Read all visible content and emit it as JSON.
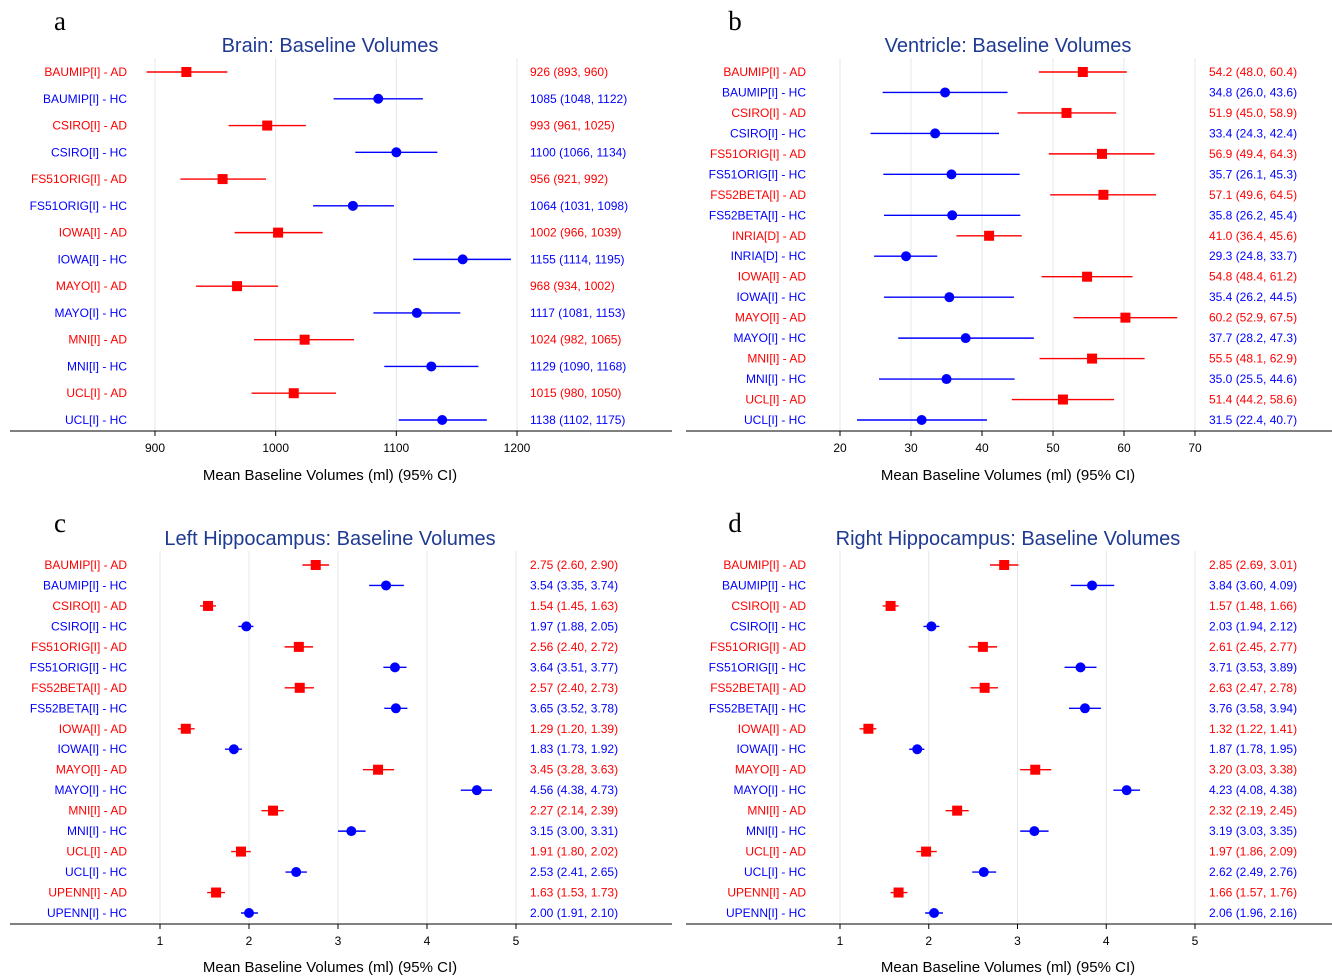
{
  "colors": {
    "AD": "#ff0000",
    "HC": "#0000ff",
    "grid": "#dfe8ec",
    "axis": "#000000",
    "title": "#1f3a93"
  },
  "chart_data": [
    {
      "panel": "a",
      "type": "forest",
      "title": "Brain: Baseline Volumes",
      "xlabel": "Mean Baseline Volumes (ml) (95% CI)",
      "xlim": [
        880,
        1225
      ],
      "xticks": [
        900,
        1000,
        1100,
        1200
      ],
      "grid": true,
      "rows": [
        {
          "label": "BAUMIP[I] - AD",
          "group": "AD",
          "mean": 926,
          "lo": 893,
          "hi": 960,
          "ci_text": "926 (893, 960)"
        },
        {
          "label": "BAUMIP[I] - HC",
          "group": "HC",
          "mean": 1085,
          "lo": 1048,
          "hi": 1122,
          "ci_text": "1085 (1048, 1122)"
        },
        {
          "label": "CSIRO[I] - AD",
          "group": "AD",
          "mean": 993,
          "lo": 961,
          "hi": 1025,
          "ci_text": "993 (961, 1025)"
        },
        {
          "label": "CSIRO[I] - HC",
          "group": "HC",
          "mean": 1100,
          "lo": 1066,
          "hi": 1134,
          "ci_text": "1100 (1066, 1134)"
        },
        {
          "label": "FS51ORIG[I] - AD",
          "group": "AD",
          "mean": 956,
          "lo": 921,
          "hi": 992,
          "ci_text": "956 (921, 992)"
        },
        {
          "label": "FS51ORIG[I] - HC",
          "group": "HC",
          "mean": 1064,
          "lo": 1031,
          "hi": 1098,
          "ci_text": "1064 (1031, 1098)"
        },
        {
          "label": "IOWA[I] - AD",
          "group": "AD",
          "mean": 1002,
          "lo": 966,
          "hi": 1039,
          "ci_text": "1002 (966, 1039)"
        },
        {
          "label": "IOWA[I] - HC",
          "group": "HC",
          "mean": 1155,
          "lo": 1114,
          "hi": 1195,
          "ci_text": "1155 (1114, 1195)"
        },
        {
          "label": "MAYO[I] - AD",
          "group": "AD",
          "mean": 968,
          "lo": 934,
          "hi": 1002,
          "ci_text": "968 (934, 1002)"
        },
        {
          "label": "MAYO[I] - HC",
          "group": "HC",
          "mean": 1117,
          "lo": 1081,
          "hi": 1153,
          "ci_text": "1117 (1081, 1153)"
        },
        {
          "label": "MNI[I] - AD",
          "group": "AD",
          "mean": 1024,
          "lo": 982,
          "hi": 1065,
          "ci_text": "1024 (982, 1065)"
        },
        {
          "label": "MNI[I] - HC",
          "group": "HC",
          "mean": 1129,
          "lo": 1090,
          "hi": 1168,
          "ci_text": "1129 (1090, 1168)"
        },
        {
          "label": "UCL[I] - AD",
          "group": "AD",
          "mean": 1015,
          "lo": 980,
          "hi": 1050,
          "ci_text": "1015 (980, 1050)"
        },
        {
          "label": "UCL[I] - HC",
          "group": "HC",
          "mean": 1138,
          "lo": 1102,
          "hi": 1175,
          "ci_text": "1138 (1102, 1175)"
        }
      ]
    },
    {
      "panel": "b",
      "type": "forest",
      "title": "Ventricle: Baseline Volumes",
      "xlabel": "Mean Baseline Volumes (ml) (95% CI)",
      "xlim": [
        15,
        75
      ],
      "xticks": [
        20,
        30,
        40,
        50,
        60,
        70
      ],
      "grid": true,
      "rows": [
        {
          "label": "BAUMIP[I] - AD",
          "group": "AD",
          "mean": 54.2,
          "lo": 48.0,
          "hi": 60.4,
          "ci_text": "54.2 (48.0, 60.4)"
        },
        {
          "label": "BAUMIP[I] - HC",
          "group": "HC",
          "mean": 34.8,
          "lo": 26.0,
          "hi": 43.6,
          "ci_text": "34.8 (26.0, 43.6)"
        },
        {
          "label": "CSIRO[I] - AD",
          "group": "AD",
          "mean": 51.9,
          "lo": 45.0,
          "hi": 58.9,
          "ci_text": "51.9 (45.0, 58.9)"
        },
        {
          "label": "CSIRO[I] - HC",
          "group": "HC",
          "mean": 33.4,
          "lo": 24.3,
          "hi": 42.4,
          "ci_text": "33.4 (24.3, 42.4)"
        },
        {
          "label": "FS51ORIG[I] - AD",
          "group": "AD",
          "mean": 56.9,
          "lo": 49.4,
          "hi": 64.3,
          "ci_text": "56.9 (49.4, 64.3)"
        },
        {
          "label": "FS51ORIG[I] - HC",
          "group": "HC",
          "mean": 35.7,
          "lo": 26.1,
          "hi": 45.3,
          "ci_text": "35.7 (26.1, 45.3)"
        },
        {
          "label": "FS52BETA[I] - AD",
          "group": "AD",
          "mean": 57.1,
          "lo": 49.6,
          "hi": 64.5,
          "ci_text": "57.1 (49.6, 64.5)"
        },
        {
          "label": "FS52BETA[I] - HC",
          "group": "HC",
          "mean": 35.8,
          "lo": 26.2,
          "hi": 45.4,
          "ci_text": "35.8 (26.2, 45.4)"
        },
        {
          "label": "INRIA[D] - AD",
          "group": "AD",
          "mean": 41.0,
          "lo": 36.4,
          "hi": 45.6,
          "ci_text": "41.0 (36.4, 45.6)"
        },
        {
          "label": "INRIA[D] - HC",
          "group": "HC",
          "mean": 29.3,
          "lo": 24.8,
          "hi": 33.7,
          "ci_text": "29.3 (24.8, 33.7)"
        },
        {
          "label": "IOWA[I] - AD",
          "group": "AD",
          "mean": 54.8,
          "lo": 48.4,
          "hi": 61.2,
          "ci_text": "54.8 (48.4, 61.2)"
        },
        {
          "label": "IOWA[I] - HC",
          "group": "HC",
          "mean": 35.4,
          "lo": 26.2,
          "hi": 44.5,
          "ci_text": "35.4 (26.2, 44.5)"
        },
        {
          "label": "MAYO[I] - AD",
          "group": "AD",
          "mean": 60.2,
          "lo": 52.9,
          "hi": 67.5,
          "ci_text": "60.2 (52.9, 67.5)"
        },
        {
          "label": "MAYO[I] - HC",
          "group": "HC",
          "mean": 37.7,
          "lo": 28.2,
          "hi": 47.3,
          "ci_text": "37.7 (28.2, 47.3)"
        },
        {
          "label": "MNI[I] - AD",
          "group": "AD",
          "mean": 55.5,
          "lo": 48.1,
          "hi": 62.9,
          "ci_text": "55.5 (48.1, 62.9)"
        },
        {
          "label": "MNI[I] - HC",
          "group": "HC",
          "mean": 35.0,
          "lo": 25.5,
          "hi": 44.6,
          "ci_text": "35.0 (25.5, 44.6)"
        },
        {
          "label": "UCL[I] - AD",
          "group": "AD",
          "mean": 51.4,
          "lo": 44.2,
          "hi": 58.6,
          "ci_text": "51.4 (44.2, 58.6)"
        },
        {
          "label": "UCL[I] - HC",
          "group": "HC",
          "mean": 31.5,
          "lo": 22.4,
          "hi": 40.7,
          "ci_text": "31.5 (22.4, 40.7)"
        }
      ]
    },
    {
      "panel": "c",
      "type": "forest",
      "title": "Left Hippocampus: Baseline Volumes",
      "xlabel": "Mean Baseline Volumes (ml) (95% CI)",
      "xlim": [
        0.5,
        5.75
      ],
      "xticks": [
        1,
        2,
        3,
        4,
        5
      ],
      "grid": true,
      "rows": [
        {
          "label": "BAUMIP[I] - AD",
          "group": "AD",
          "mean": 2.75,
          "lo": 2.6,
          "hi": 2.9,
          "ci_text": "2.75 (2.60, 2.90)"
        },
        {
          "label": "BAUMIP[I] - HC",
          "group": "HC",
          "mean": 3.54,
          "lo": 3.35,
          "hi": 3.74,
          "ci_text": "3.54 (3.35, 3.74)"
        },
        {
          "label": "CSIRO[I] - AD",
          "group": "AD",
          "mean": 1.54,
          "lo": 1.45,
          "hi": 1.63,
          "ci_text": "1.54 (1.45, 1.63)"
        },
        {
          "label": "CSIRO[I] - HC",
          "group": "HC",
          "mean": 1.97,
          "lo": 1.88,
          "hi": 2.05,
          "ci_text": "1.97 (1.88, 2.05)"
        },
        {
          "label": "FS51ORIG[I] - AD",
          "group": "AD",
          "mean": 2.56,
          "lo": 2.4,
          "hi": 2.72,
          "ci_text": "2.56 (2.40, 2.72)"
        },
        {
          "label": "FS51ORIG[I] - HC",
          "group": "HC",
          "mean": 3.64,
          "lo": 3.51,
          "hi": 3.77,
          "ci_text": "3.64 (3.51, 3.77)"
        },
        {
          "label": "FS52BETA[I] - AD",
          "group": "AD",
          "mean": 2.57,
          "lo": 2.4,
          "hi": 2.73,
          "ci_text": "2.57 (2.40, 2.73)"
        },
        {
          "label": "FS52BETA[I] - HC",
          "group": "HC",
          "mean": 3.65,
          "lo": 3.52,
          "hi": 3.78,
          "ci_text": "3.65 (3.52, 3.78)"
        },
        {
          "label": "IOWA[I] - AD",
          "group": "AD",
          "mean": 1.29,
          "lo": 1.2,
          "hi": 1.39,
          "ci_text": "1.29 (1.20, 1.39)"
        },
        {
          "label": "IOWA[I] - HC",
          "group": "HC",
          "mean": 1.83,
          "lo": 1.73,
          "hi": 1.92,
          "ci_text": "1.83 (1.73, 1.92)"
        },
        {
          "label": "MAYO[I] - AD",
          "group": "AD",
          "mean": 3.45,
          "lo": 3.28,
          "hi": 3.63,
          "ci_text": "3.45 (3.28, 3.63)"
        },
        {
          "label": "MAYO[I] - HC",
          "group": "HC",
          "mean": 4.56,
          "lo": 4.38,
          "hi": 4.73,
          "ci_text": "4.56 (4.38, 4.73)"
        },
        {
          "label": "MNI[I] - AD",
          "group": "AD",
          "mean": 2.27,
          "lo": 2.14,
          "hi": 2.39,
          "ci_text": "2.27 (2.14, 2.39)"
        },
        {
          "label": "MNI[I] - HC",
          "group": "HC",
          "mean": 3.15,
          "lo": 3.0,
          "hi": 3.31,
          "ci_text": "3.15 (3.00, 3.31)"
        },
        {
          "label": "UCL[I] - AD",
          "group": "AD",
          "mean": 1.91,
          "lo": 1.8,
          "hi": 2.02,
          "ci_text": "1.91 (1.80, 2.02)"
        },
        {
          "label": "UCL[I] - HC",
          "group": "HC",
          "mean": 2.53,
          "lo": 2.41,
          "hi": 2.65,
          "ci_text": "2.53 (2.41, 2.65)"
        },
        {
          "label": "UPENN[I] - AD",
          "group": "AD",
          "mean": 1.63,
          "lo": 1.53,
          "hi": 1.73,
          "ci_text": "1.63 (1.53, 1.73)"
        },
        {
          "label": "UPENN[I] - HC",
          "group": "HC",
          "mean": 2.0,
          "lo": 1.91,
          "hi": 2.1,
          "ci_text": "2.00 (1.91, 2.10)"
        }
      ]
    },
    {
      "panel": "d",
      "type": "forest",
      "title": "Right Hippocampus: Baseline Volumes",
      "xlabel": "Mean Baseline Volumes (ml) (95% CI)",
      "xlim": [
        0.5,
        5.75
      ],
      "xticks": [
        1,
        2,
        3,
        4,
        5
      ],
      "grid": true,
      "rows": [
        {
          "label": "BAUMIP[I] - AD",
          "group": "AD",
          "mean": 2.85,
          "lo": 2.69,
          "hi": 3.01,
          "ci_text": "2.85 (2.69, 3.01)"
        },
        {
          "label": "BAUMIP[I] - HC",
          "group": "HC",
          "mean": 3.84,
          "lo": 3.6,
          "hi": 4.09,
          "ci_text": "3.84 (3.60, 4.09)"
        },
        {
          "label": "CSIRO[I] - AD",
          "group": "AD",
          "mean": 1.57,
          "lo": 1.48,
          "hi": 1.66,
          "ci_text": "1.57 (1.48, 1.66)"
        },
        {
          "label": "CSIRO[I] - HC",
          "group": "HC",
          "mean": 2.03,
          "lo": 1.94,
          "hi": 2.12,
          "ci_text": "2.03 (1.94, 2.12)"
        },
        {
          "label": "FS51ORIG[I] - AD",
          "group": "AD",
          "mean": 2.61,
          "lo": 2.45,
          "hi": 2.77,
          "ci_text": "2.61 (2.45, 2.77)"
        },
        {
          "label": "FS51ORIG[I] - HC",
          "group": "HC",
          "mean": 3.71,
          "lo": 3.53,
          "hi": 3.89,
          "ci_text": "3.71 (3.53, 3.89)"
        },
        {
          "label": "FS52BETA[I] - AD",
          "group": "AD",
          "mean": 2.63,
          "lo": 2.47,
          "hi": 2.78,
          "ci_text": "2.63 (2.47, 2.78)"
        },
        {
          "label": "FS52BETA[I] - HC",
          "group": "HC",
          "mean": 3.76,
          "lo": 3.58,
          "hi": 3.94,
          "ci_text": "3.76 (3.58, 3.94)"
        },
        {
          "label": "IOWA[I] - AD",
          "group": "AD",
          "mean": 1.32,
          "lo": 1.22,
          "hi": 1.41,
          "ci_text": "1.32 (1.22, 1.41)"
        },
        {
          "label": "IOWA[I] - HC",
          "group": "HC",
          "mean": 1.87,
          "lo": 1.78,
          "hi": 1.95,
          "ci_text": "1.87 (1.78, 1.95)"
        },
        {
          "label": "MAYO[I] - AD",
          "group": "AD",
          "mean": 3.2,
          "lo": 3.03,
          "hi": 3.38,
          "ci_text": "3.20 (3.03, 3.38)"
        },
        {
          "label": "MAYO[I] - HC",
          "group": "HC",
          "mean": 4.23,
          "lo": 4.08,
          "hi": 4.38,
          "ci_text": "4.23 (4.08, 4.38)"
        },
        {
          "label": "MNI[I] - AD",
          "group": "AD",
          "mean": 2.32,
          "lo": 2.19,
          "hi": 2.45,
          "ci_text": "2.32 (2.19, 2.45)"
        },
        {
          "label": "MNI[I] - HC",
          "group": "HC",
          "mean": 3.19,
          "lo": 3.03,
          "hi": 3.35,
          "ci_text": "3.19 (3.03, 3.35)"
        },
        {
          "label": "UCL[I] - AD",
          "group": "AD",
          "mean": 1.97,
          "lo": 1.86,
          "hi": 2.09,
          "ci_text": "1.97 (1.86, 2.09)"
        },
        {
          "label": "UCL[I] - HC",
          "group": "HC",
          "mean": 2.62,
          "lo": 2.49,
          "hi": 2.76,
          "ci_text": "2.62 (2.49, 2.76)"
        },
        {
          "label": "UPENN[I] - AD",
          "group": "AD",
          "mean": 1.66,
          "lo": 1.57,
          "hi": 1.76,
          "ci_text": "1.66 (1.57, 1.76)"
        },
        {
          "label": "UPENN[I] - HC",
          "group": "HC",
          "mean": 2.06,
          "lo": 1.96,
          "hi": 2.16,
          "ci_text": "2.06 (1.96, 2.16)"
        }
      ]
    }
  ]
}
